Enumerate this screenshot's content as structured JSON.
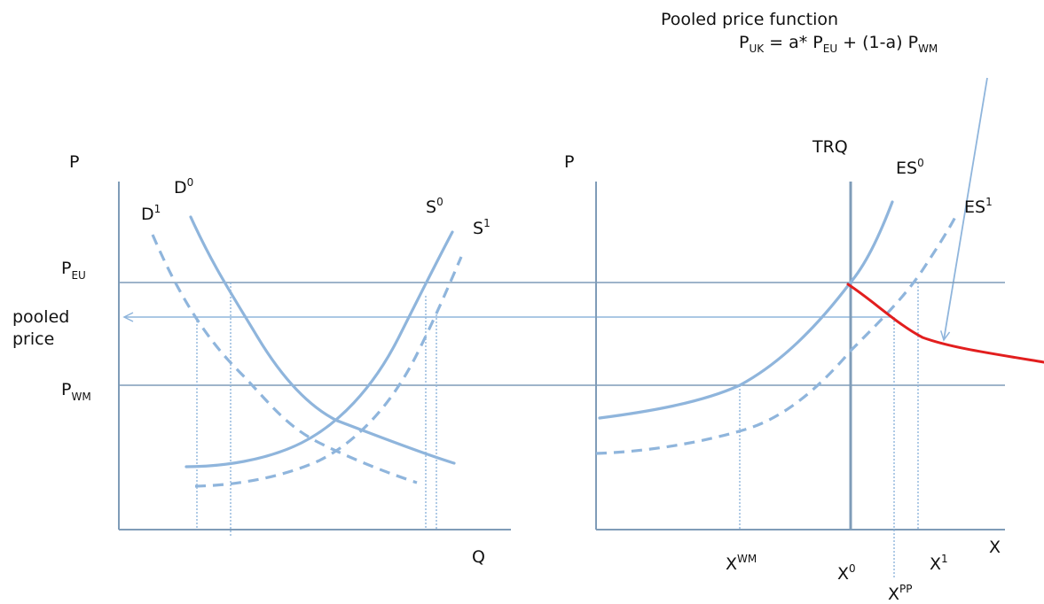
{
  "colors": {
    "axis": "#7f9cb8",
    "curve": "#8fb5dc",
    "guide": "#8fb5dc",
    "red": "#e21e1e",
    "text": "#111111"
  },
  "title": {
    "line1": "Pooled price function",
    "lhs_main": "P",
    "lhs_sub": "UK",
    "eq_a": " = a* P",
    "eq_a_sub": "EU",
    "eq_b": " + (1-a) P",
    "eq_b_sub": "WM"
  },
  "left": {
    "y_axis_label": "P",
    "x_axis_label": "Q",
    "p_eu_main": "P",
    "p_eu_sub": "EU",
    "p_wm_main": "P",
    "p_wm_sub": "WM",
    "pooled_line1": "pooled",
    "pooled_line2": "price",
    "d0_main": "D",
    "d0_sup": "0",
    "d1_main": "D",
    "d1_sup": "1",
    "s0_main": "S",
    "s0_sup": "0",
    "s1_main": "S",
    "s1_sup": "1"
  },
  "right": {
    "y_axis_label": "P",
    "x_axis_label": "X",
    "trq": "TRQ",
    "es0_main": "ES",
    "es0_sup": "0",
    "es1_main": "ES",
    "es1_sup": "1",
    "xwm_main": "X",
    "xwm_sup": "WM",
    "x0_main": "X",
    "x0_sup": "0",
    "xpp_main": "X",
    "xpp_sup": "PP",
    "x1_main": "X",
    "x1_sup": "1"
  }
}
